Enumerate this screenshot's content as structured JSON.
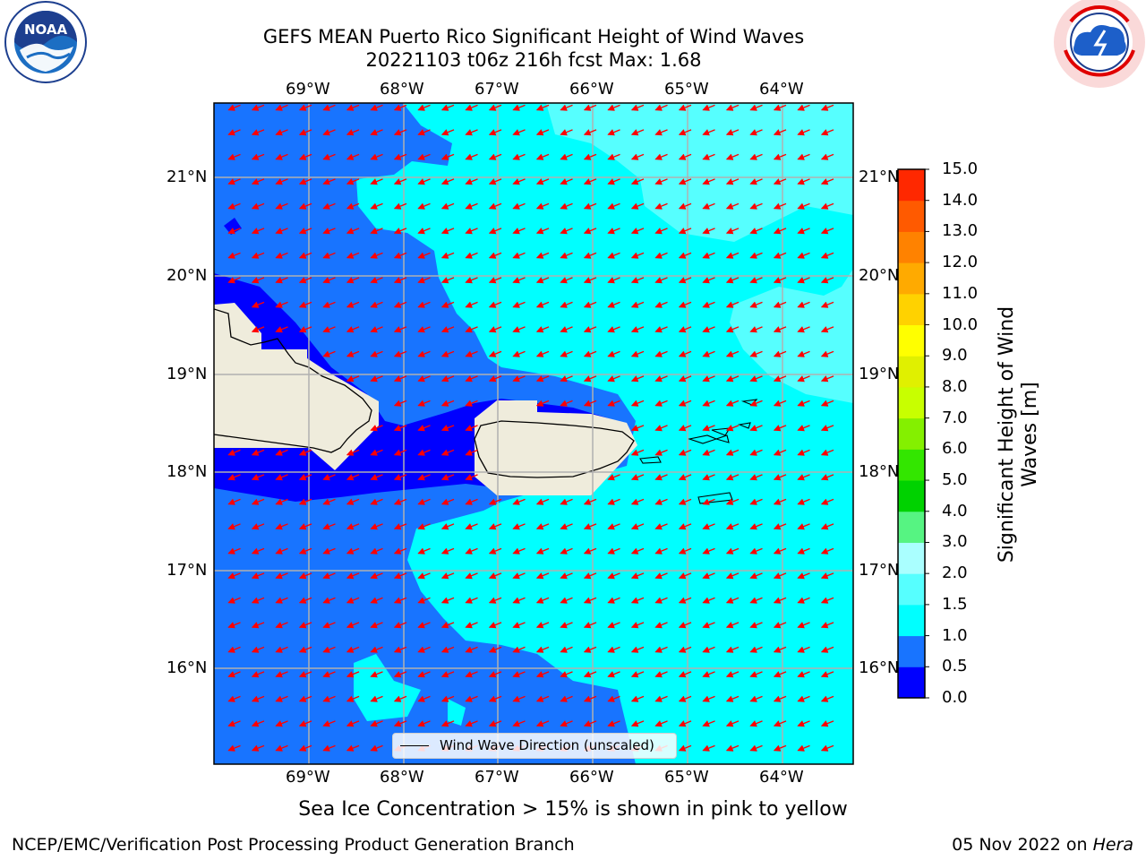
{
  "title": {
    "line1": "GEFS MEAN Puerto Rico Significant Height of Wind Waves",
    "line2": "20221103 t06z 216h fcst   Max: 1.68"
  },
  "logos": {
    "noaa": {
      "text": "NOAA",
      "ring_text": "NATIONAL OCEANIC AND ATMOSPHERIC ADMINISTRATION · U.S. DEPARTMENT OF COMMERCE"
    },
    "nws": {
      "ring_text": "NATIONAL WEATHER SERVICE"
    }
  },
  "map": {
    "lon_labels": [
      "69°W",
      "68°W",
      "67°W",
      "66°W",
      "65°W",
      "64°W"
    ],
    "lat_labels": [
      "21°N",
      "20°N",
      "19°N",
      "18°N",
      "17°N",
      "16°N"
    ],
    "lon_values": [
      -69,
      -68,
      -67,
      -66,
      -65,
      -64
    ],
    "lat_values": [
      21,
      20,
      19,
      18,
      17,
      16
    ],
    "extent": {
      "lon_min": -70,
      "lon_max": -63.25,
      "lat_min": 15,
      "lat_max": 21.75
    },
    "wind_direction_deg_toward": 200,
    "legend_label": "Wind Wave Direction (unscaled)",
    "land_color": "#efecdc",
    "arrow_color": "#ff0000"
  },
  "colorbar": {
    "title": "Significant Height of Wind Waves [m]",
    "title_line1": "Significant Height of Wind",
    "title_line2": "Waves [m]",
    "ticks": [
      "0.0",
      "0.5",
      "1.0",
      "1.5",
      "2.0",
      "3.0",
      "4.0",
      "5.0",
      "6.0",
      "7.0",
      "8.0",
      "9.0",
      "10.0",
      "11.0",
      "12.0",
      "13.0",
      "14.0",
      "15.0"
    ],
    "colors": [
      "#0000ff",
      "#1874ff",
      "#00ffff",
      "#56ffff",
      "#aaffff",
      "#56f482",
      "#00d200",
      "#33e600",
      "#84f000",
      "#c8ff00",
      "#e0f000",
      "#ffff00",
      "#ffd200",
      "#ffaa00",
      "#ff8200",
      "#ff5a00",
      "#ff2800"
    ]
  },
  "caption": "Sea Ice Concentration > 15% is shown in pink to yellow",
  "footer": {
    "left": "NCEP/EMC/Verification Post Processing Product Generation Branch",
    "date": "05 Nov 2022 on ",
    "machine": "Hera"
  }
}
